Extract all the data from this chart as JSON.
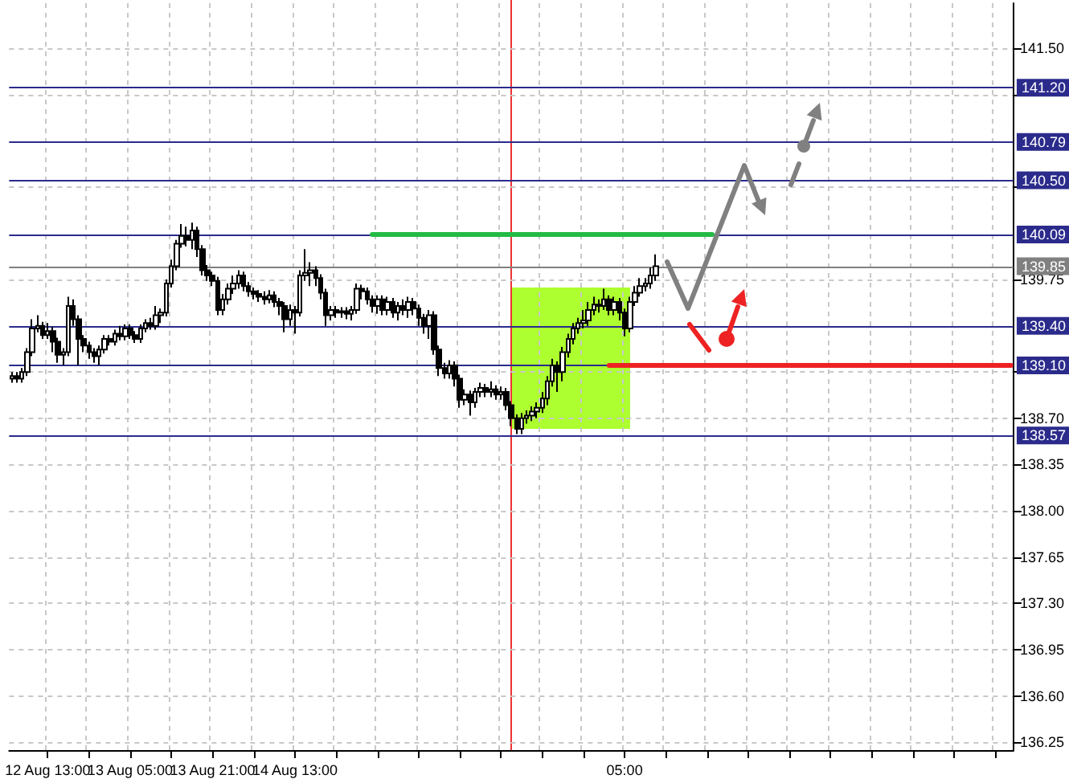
{
  "chart_data": {
    "type": "candlestick",
    "categories": [
      null,
      null,
      null,
      null,
      null,
      null,
      null,
      "12 Aug 13:00",
      null,
      null,
      null,
      null,
      null,
      null,
      null,
      null,
      null,
      null,
      null,
      null,
      null,
      null,
      null,
      "13 Aug 05:00",
      null,
      null,
      null,
      null,
      null,
      null,
      null,
      null,
      null,
      null,
      null,
      null,
      null,
      null,
      null,
      "13 Aug 21:00",
      null,
      null,
      null,
      null,
      null,
      null,
      null,
      null,
      null,
      null,
      null,
      null,
      null,
      null,
      null,
      "14 Aug 13:00",
      null,
      null,
      null,
      null,
      null,
      null,
      null,
      null,
      null,
      null,
      null,
      null,
      null,
      null,
      null,
      null,
      null,
      null,
      null,
      null,
      null,
      null,
      null,
      null,
      null,
      null,
      null,
      null,
      null,
      null,
      null,
      null,
      null,
      null,
      null,
      null,
      null,
      null,
      null,
      null,
      null,
      null,
      null,
      null,
      null,
      null,
      null,
      null,
      null,
      null,
      null,
      null,
      null,
      null,
      null,
      null,
      null,
      null,
      null,
      null,
      null,
      null,
      null,
      "05:00",
      null,
      null,
      null,
      null,
      null,
      null,
      null,
      null,
      null,
      null,
      null,
      null,
      null,
      null,
      null,
      null,
      null,
      null,
      null,
      null,
      null,
      null,
      null,
      null,
      null,
      null,
      null,
      null,
      null,
      null,
      null,
      null,
      null,
      null,
      null,
      null,
      null,
      null,
      null,
      null,
      null,
      null,
      null,
      null,
      null,
      null,
      null,
      null,
      null,
      null,
      null,
      null,
      null,
      null,
      null,
      null,
      null,
      null,
      null,
      null,
      null,
      null,
      null,
      null,
      null,
      null,
      null,
      null,
      null,
      null,
      null,
      null,
      null,
      null,
      null
    ],
    "ylim": [
      136.19,
      141.84
    ],
    "yticks": [
      {
        "value": 136.25,
        "label": "136.25"
      },
      {
        "value": 136.6,
        "label": "136.60"
      },
      {
        "value": 136.95,
        "label": "136.95"
      },
      {
        "value": 137.3,
        "label": "137.30"
      },
      {
        "value": 137.65,
        "label": "137.65"
      },
      {
        "value": 138.0,
        "label": "138.00"
      },
      {
        "value": 138.35,
        "label": "138.35"
      },
      {
        "value": 138.7,
        "label": "138.70"
      },
      {
        "value": 139.05,
        "label": null
      },
      {
        "value": 139.75,
        "label": "139.75"
      },
      {
        "value": 140.45,
        "label": null
      },
      {
        "value": 141.15,
        "label": null
      },
      {
        "value": 141.5,
        "label": "141.50"
      }
    ],
    "grid": true,
    "series": [
      {
        "color": "#000000",
        "ohlc": [
          [
            139.0,
            139.05,
            138.97,
            139.02
          ],
          [
            139.02,
            139.05,
            138.97,
            139.0
          ],
          [
            139.0,
            139.08,
            138.97,
            139.05
          ],
          [
            139.05,
            139.23,
            139.02,
            139.2
          ],
          [
            139.2,
            139.45,
            139.17,
            139.38
          ],
          [
            139.38,
            139.48,
            139.35,
            139.4
          ],
          [
            139.4,
            139.43,
            139.3,
            139.33
          ],
          [
            139.33,
            139.42,
            139.3,
            139.36
          ],
          [
            139.36,
            139.39,
            139.2,
            139.28
          ],
          [
            139.28,
            139.31,
            139.12,
            139.18
          ],
          [
            139.18,
            139.23,
            139.1,
            139.2
          ],
          [
            139.2,
            139.62,
            139.17,
            139.55
          ],
          [
            139.55,
            139.6,
            139.4,
            139.45
          ],
          [
            139.45,
            139.48,
            139.1,
            139.3
          ],
          [
            139.3,
            139.33,
            139.2,
            139.25
          ],
          [
            139.25,
            139.28,
            139.15,
            139.2
          ],
          [
            139.2,
            139.23,
            139.12,
            139.17
          ],
          [
            139.17,
            139.25,
            139.1,
            139.22
          ],
          [
            139.22,
            139.33,
            139.19,
            139.3
          ],
          [
            139.3,
            139.33,
            139.25,
            139.28
          ],
          [
            139.28,
            139.37,
            139.25,
            139.34
          ],
          [
            139.34,
            139.4,
            139.29,
            139.32
          ],
          [
            139.32,
            139.41,
            139.29,
            139.38
          ],
          [
            139.38,
            139.41,
            139.3,
            139.33
          ],
          [
            139.33,
            139.36,
            139.27,
            139.3
          ],
          [
            139.3,
            139.41,
            139.27,
            139.38
          ],
          [
            139.38,
            139.45,
            139.35,
            139.42
          ],
          [
            139.42,
            139.46,
            139.37,
            139.4
          ],
          [
            139.4,
            139.55,
            139.37,
            139.48
          ],
          [
            139.48,
            139.53,
            139.42,
            139.5
          ],
          [
            139.5,
            139.75,
            139.47,
            139.72
          ],
          [
            139.72,
            139.9,
            139.69,
            139.85
          ],
          [
            139.85,
            140.05,
            139.82,
            140.02
          ],
          [
            140.02,
            140.17,
            139.99,
            140.08
          ],
          [
            140.08,
            140.15,
            140.0,
            140.05
          ],
          [
            140.05,
            140.18,
            139.98,
            140.12
          ],
          [
            140.12,
            140.15,
            139.92,
            139.98
          ],
          [
            139.98,
            140.01,
            139.78,
            139.82
          ],
          [
            139.82,
            139.86,
            139.74,
            139.78
          ],
          [
            139.78,
            139.81,
            139.7,
            139.74
          ],
          [
            139.74,
            139.77,
            139.48,
            139.52
          ],
          [
            139.52,
            139.64,
            139.48,
            139.6
          ],
          [
            139.6,
            139.72,
            139.56,
            139.68
          ],
          [
            139.68,
            139.78,
            139.64,
            139.72
          ],
          [
            139.72,
            139.82,
            139.68,
            139.78
          ],
          [
            139.78,
            139.81,
            139.66,
            139.7
          ],
          [
            139.7,
            139.73,
            139.62,
            139.66
          ],
          [
            139.66,
            139.69,
            139.6,
            139.64
          ],
          [
            139.64,
            139.67,
            139.58,
            139.62
          ],
          [
            139.62,
            139.66,
            139.56,
            139.6
          ],
          [
            139.6,
            139.67,
            139.57,
            139.63
          ],
          [
            139.63,
            139.66,
            139.54,
            139.58
          ],
          [
            139.58,
            139.61,
            139.48,
            139.55
          ],
          [
            139.55,
            139.58,
            139.35,
            139.45
          ],
          [
            139.45,
            139.56,
            139.4,
            139.52
          ],
          [
            139.52,
            139.55,
            139.34,
            139.5
          ],
          [
            139.5,
            139.82,
            139.47,
            139.78
          ],
          [
            139.78,
            139.98,
            139.74,
            139.8
          ],
          [
            139.8,
            139.88,
            139.7,
            139.82
          ],
          [
            139.82,
            139.85,
            139.7,
            139.76
          ],
          [
            139.76,
            139.79,
            139.6,
            139.65
          ],
          [
            139.65,
            139.68,
            139.4,
            139.48
          ],
          [
            139.48,
            139.55,
            139.44,
            139.52
          ],
          [
            139.52,
            139.55,
            139.46,
            139.5
          ],
          [
            139.5,
            139.54,
            139.46,
            139.51
          ],
          [
            139.51,
            139.54,
            139.45,
            139.49
          ],
          [
            139.49,
            139.55,
            139.44,
            139.52
          ],
          [
            139.52,
            139.72,
            139.49,
            139.68
          ],
          [
            139.68,
            139.71,
            139.6,
            139.66
          ],
          [
            139.66,
            139.69,
            139.56,
            139.6
          ],
          [
            139.6,
            139.63,
            139.5,
            139.55
          ],
          [
            139.55,
            139.63,
            139.49,
            139.6
          ],
          [
            139.6,
            139.63,
            139.48,
            139.52
          ],
          [
            139.52,
            139.62,
            139.48,
            139.58
          ],
          [
            139.58,
            139.61,
            139.46,
            139.5
          ],
          [
            139.5,
            139.58,
            139.44,
            139.55
          ],
          [
            139.55,
            139.6,
            139.48,
            139.52
          ],
          [
            139.52,
            139.62,
            139.46,
            139.58
          ],
          [
            139.58,
            139.61,
            139.48,
            139.53
          ],
          [
            139.53,
            139.56,
            139.4,
            139.46
          ],
          [
            139.46,
            139.49,
            139.34,
            139.4
          ],
          [
            139.4,
            139.52,
            139.3,
            139.48
          ],
          [
            139.48,
            139.51,
            139.18,
            139.22
          ],
          [
            139.22,
            139.25,
            139.02,
            139.08
          ],
          [
            139.08,
            139.12,
            139.0,
            139.04
          ],
          [
            139.04,
            139.14,
            139.0,
            139.1
          ],
          [
            139.1,
            139.13,
            138.94,
            139.0
          ],
          [
            139.0,
            139.03,
            138.78,
            138.84
          ],
          [
            138.84,
            138.92,
            138.8,
            138.88
          ],
          [
            138.88,
            138.91,
            138.72,
            138.82
          ],
          [
            138.82,
            138.93,
            138.78,
            138.9
          ],
          [
            138.9,
            138.97,
            138.86,
            138.93
          ],
          [
            138.93,
            138.96,
            138.86,
            138.9
          ],
          [
            138.9,
            138.98,
            138.86,
            138.92
          ],
          [
            138.92,
            138.95,
            138.84,
            138.88
          ],
          [
            138.88,
            138.94,
            138.84,
            138.9
          ],
          [
            138.9,
            138.93,
            138.76,
            138.8
          ],
          [
            138.8,
            138.83,
            138.64,
            138.7
          ],
          [
            138.7,
            138.73,
            138.58,
            138.62
          ],
          [
            138.62,
            138.74,
            138.58,
            138.7
          ],
          [
            138.7,
            138.76,
            138.66,
            138.72
          ],
          [
            138.72,
            138.79,
            138.68,
            138.75
          ],
          [
            138.75,
            138.82,
            138.7,
            138.78
          ],
          [
            138.78,
            138.9,
            138.74,
            138.85
          ],
          [
            138.85,
            139.02,
            138.8,
            138.98
          ],
          [
            138.98,
            139.15,
            138.94,
            139.1
          ],
          [
            139.1,
            139.13,
            138.9,
            139.05
          ],
          [
            139.05,
            139.24,
            138.98,
            139.2
          ],
          [
            139.2,
            139.34,
            139.16,
            139.3
          ],
          [
            139.3,
            139.42,
            139.26,
            139.38
          ],
          [
            139.38,
            139.46,
            139.34,
            139.42
          ],
          [
            139.42,
            139.52,
            139.38,
            139.44
          ],
          [
            139.44,
            139.58,
            139.4,
            139.52
          ],
          [
            139.52,
            139.62,
            139.48,
            139.56
          ],
          [
            139.56,
            139.6,
            139.5,
            139.55
          ],
          [
            139.55,
            139.68,
            139.52,
            139.6
          ],
          [
            139.6,
            139.63,
            139.48,
            139.52
          ],
          [
            139.52,
            139.62,
            139.48,
            139.58
          ],
          [
            139.58,
            139.61,
            139.44,
            139.5
          ],
          [
            139.5,
            139.53,
            139.32,
            139.38
          ],
          [
            139.38,
            139.62,
            139.35,
            139.58
          ],
          [
            139.58,
            139.7,
            139.55,
            139.65
          ],
          [
            139.65,
            139.76,
            139.62,
            139.7
          ],
          [
            139.7,
            139.76,
            139.66,
            139.72
          ],
          [
            139.72,
            139.84,
            139.68,
            139.78
          ],
          [
            139.78,
            139.94,
            139.74,
            139.85
          ],
          null,
          null,
          null,
          null,
          null,
          null,
          null,
          null,
          null,
          null,
          null,
          null,
          null,
          null,
          null,
          null,
          null,
          null,
          null,
          null,
          null,
          null,
          null,
          null,
          null,
          null,
          null,
          null,
          null,
          null,
          null,
          null,
          null,
          null,
          null,
          null,
          null,
          null,
          null,
          null,
          null,
          null,
          null,
          null,
          null,
          null,
          null,
          null,
          null,
          null,
          null,
          null,
          null,
          null,
          null,
          null,
          null,
          null,
          null,
          null,
          null,
          null,
          null,
          null,
          null,
          null,
          null,
          null,
          null
        ]
      },
      {
        "type": "line",
        "color": "#22bb44",
        "values": [
          null,
          null,
          null,
          null,
          null,
          null,
          null,
          null,
          null,
          null,
          null,
          null,
          null,
          null,
          null,
          null,
          null,
          null,
          null,
          null,
          null,
          null,
          null,
          null,
          null,
          null,
          null,
          null,
          null,
          null,
          null,
          null,
          null,
          null,
          null,
          null,
          null,
          null,
          null,
          null,
          null,
          null,
          null,
          null,
          null,
          null,
          null,
          null,
          null,
          null,
          null,
          null,
          null,
          null,
          null,
          null,
          null,
          null,
          null,
          null,
          null,
          null,
          null,
          null,
          null,
          null,
          null,
          null,
          null,
          null,
          140.09,
          140.09,
          140.09,
          140.09,
          140.09,
          140.09,
          140.09,
          140.09,
          140.09,
          140.09,
          140.09,
          140.09,
          140.09,
          140.09,
          140.09,
          140.09,
          140.09,
          140.09,
          140.09,
          140.09,
          140.09,
          140.09,
          140.09,
          140.09,
          140.09,
          140.09,
          140.09,
          140.09,
          140.09,
          140.09,
          140.09,
          140.09,
          140.09,
          140.09,
          140.09,
          140.09,
          140.09,
          140.09,
          140.09,
          140.09,
          140.09,
          140.09,
          140.09,
          140.09,
          140.09,
          140.09,
          140.09,
          140.09,
          140.09,
          140.09,
          140.09,
          140.09,
          140.09,
          140.09,
          140.09,
          140.09,
          140.09,
          140.09,
          140.09,
          140.09,
          140.09,
          140.09,
          140.09,
          140.09,
          140.09,
          140.09,
          140.09,
          null,
          null,
          null,
          null,
          null,
          null,
          null,
          null,
          null,
          null,
          null,
          null,
          null,
          null,
          null,
          null,
          null,
          null,
          null,
          null,
          null,
          null,
          null,
          null,
          null,
          null,
          null,
          null,
          null,
          null,
          null,
          null,
          null,
          null,
          null,
          null,
          null,
          null,
          null,
          null,
          null,
          null,
          null,
          null,
          null,
          null,
          null,
          null,
          null,
          null,
          null,
          null,
          null,
          null,
          null,
          null,
          null,
          null
        ]
      },
      {
        "type": "line",
        "color": "#ee2222",
        "values": [
          null,
          null,
          null,
          null,
          null,
          null,
          null,
          null,
          null,
          null,
          null,
          null,
          null,
          null,
          null,
          null,
          null,
          null,
          null,
          null,
          null,
          null,
          null,
          null,
          null,
          null,
          null,
          null,
          null,
          null,
          null,
          null,
          null,
          null,
          null,
          null,
          null,
          null,
          null,
          null,
          null,
          null,
          null,
          null,
          null,
          null,
          null,
          null,
          null,
          null,
          null,
          null,
          null,
          null,
          null,
          null,
          null,
          null,
          null,
          null,
          null,
          null,
          null,
          null,
          null,
          null,
          null,
          null,
          null,
          null,
          null,
          null,
          null,
          null,
          null,
          null,
          null,
          null,
          null,
          null,
          null,
          null,
          null,
          null,
          null,
          null,
          null,
          null,
          null,
          null,
          null,
          null,
          null,
          null,
          null,
          null,
          null,
          null,
          null,
          null,
          null,
          null,
          null,
          null,
          null,
          null,
          null,
          null,
          null,
          null,
          null,
          null,
          null,
          null,
          null,
          null,
          139.1,
          139.1,
          139.1,
          139.1,
          139.1,
          139.1,
          139.1,
          139.1,
          139.1,
          139.1,
          139.1,
          139.1,
          139.1,
          139.1,
          139.1,
          139.1,
          139.1,
          139.1,
          139.1,
          139.1,
          139.1,
          139.1,
          139.1,
          139.1,
          139.1,
          139.1,
          139.1,
          139.1,
          139.1,
          139.1,
          139.1,
          139.1,
          139.1,
          139.1,
          139.1,
          139.1,
          139.1,
          139.1,
          139.1,
          139.1,
          139.1,
          139.1,
          139.1,
          139.1,
          139.1,
          139.1,
          139.1,
          139.1,
          139.1,
          139.1,
          139.1,
          139.1,
          139.1,
          139.1,
          139.1,
          139.1,
          139.1,
          139.1,
          139.1,
          139.1,
          139.1,
          139.1,
          139.1,
          139.1,
          139.1,
          139.1,
          139.1,
          139.1,
          139.1,
          139.1,
          139.1,
          139.1,
          139.1,
          139.1,
          139.1,
          139.1,
          139.1,
          139.1,
          139.1
        ]
      }
    ],
    "ref_lines": [
      {
        "axis": "y",
        "value": 141.2,
        "label": "141.20",
        "color": "#2b2b8c"
      },
      {
        "axis": "y",
        "value": 140.79,
        "label": "140.79",
        "color": "#2b2b8c"
      },
      {
        "axis": "y",
        "value": 140.5,
        "label": "140.50",
        "color": "#2b2b8c"
      },
      {
        "axis": "y",
        "value": 140.09,
        "label": "140.09",
        "color": "#2b2b8c"
      },
      {
        "axis": "y",
        "value": 139.85,
        "label": "139.85",
        "color": "#808080"
      },
      {
        "axis": "y",
        "value": 139.4,
        "label": "139.40",
        "color": "#2b2b8c"
      },
      {
        "axis": "y",
        "value": 139.1,
        "label": "139.10",
        "color": "#2b2b8c"
      },
      {
        "axis": "y",
        "value": 138.57,
        "label": "138.57",
        "color": "#2b2b8c"
      }
    ]
  }
}
